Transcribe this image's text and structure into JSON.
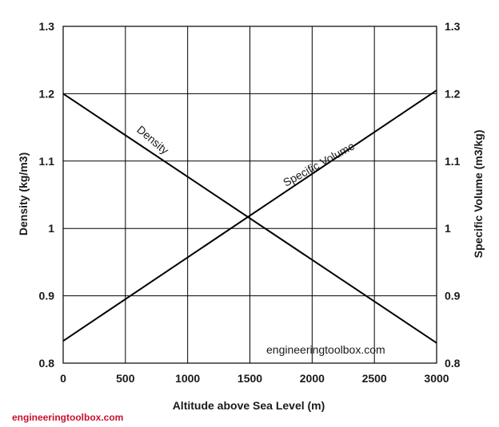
{
  "chart_data": {
    "type": "line",
    "x": [
      0,
      3000
    ],
    "xlabel": "Altitude above Sea Level (m)",
    "xlim": [
      0,
      3000
    ],
    "xticks": [
      "0",
      "500",
      "1000",
      "1500",
      "2000",
      "2500",
      "3000"
    ],
    "ylabel_left": "Density (kg/m3)",
    "ylabel_right": "Specific Volume (m3/kg)",
    "ylim": [
      0.8,
      1.3
    ],
    "yticks": [
      "0.8",
      "0.9",
      "1",
      "1.1",
      "1.2",
      "1.3"
    ],
    "grid": true,
    "series": [
      {
        "name": "Density",
        "x": [
          0,
          3000
        ],
        "values": [
          1.2,
          0.83
        ]
      },
      {
        "name": "Specific Volume",
        "x": [
          0,
          3000
        ],
        "values": [
          0.833,
          1.205
        ]
      }
    ],
    "annotations": {
      "inner_watermark": "engineeringtoolbox.com",
      "outer_watermark": "engineeringtoolbox.com"
    },
    "colors": {
      "line": "#000000",
      "grid": "#000000",
      "watermark_outer": "#c8102e"
    }
  }
}
